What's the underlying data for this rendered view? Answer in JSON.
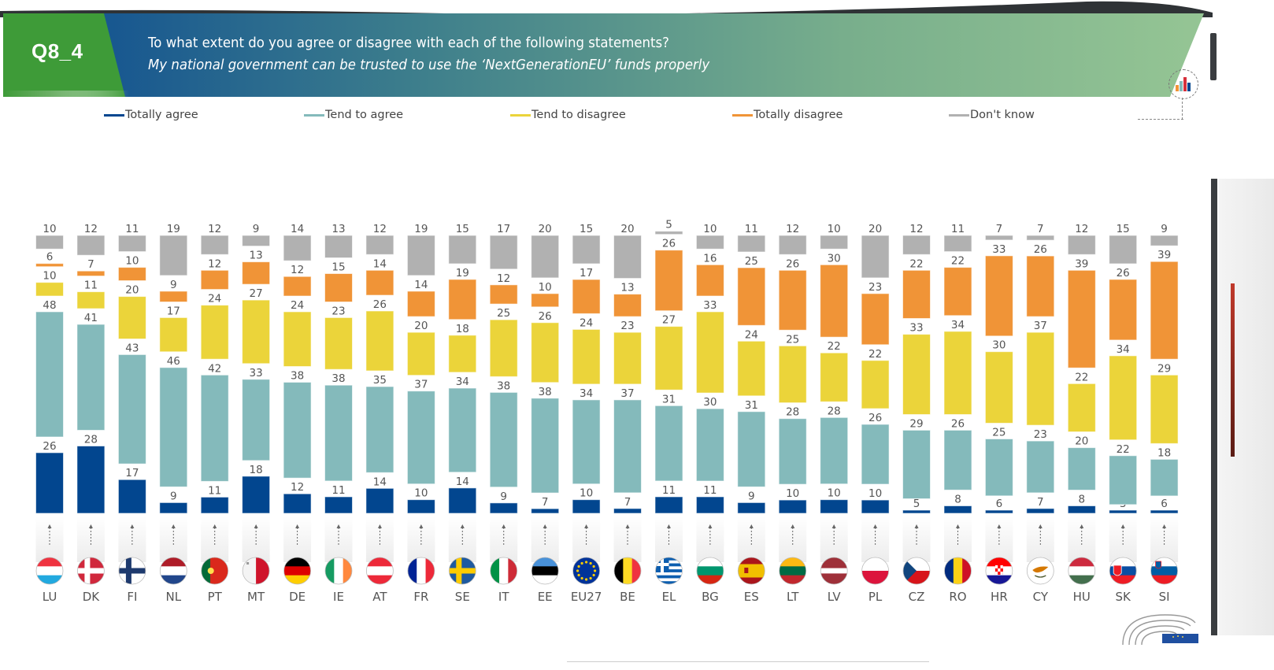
{
  "header": {
    "question_code": "Q8_4",
    "question_text": "To what extent do you agree or disagree with each of the following statements?",
    "statement": "My national government can be trusted to use the ‘NextGenerationEU’ funds properly",
    "chart_icon": "bar-chart-icon"
  },
  "colors": {
    "totally_agree": "#02468F",
    "tend_to_agree": "#84BABB",
    "tend_to_disagree": "#EBD43A",
    "totally_disagree": "#F09437",
    "dont_know": "#B1B1B1",
    "banner_green": "#3E9B38",
    "banner_blue": "#0B4A91",
    "banner_light": "#95C594"
  },
  "legend": [
    {
      "label": "Totally agree",
      "color": "#02468F"
    },
    {
      "label": "Tend to agree",
      "color": "#84BABB"
    },
    {
      "label": "Tend to disagree",
      "color": "#EBD43A"
    },
    {
      "label": "Totally disagree",
      "color": "#F09437"
    },
    {
      "label": "Don't know",
      "color": "#B1B1B1"
    }
  ],
  "chart_data": {
    "type": "bar",
    "stacked": true,
    "title": "My national government can be trusted to use the ‘NextGenerationEU’ funds properly",
    "xlabel": "",
    "ylabel": "",
    "ylim": [
      0,
      100
    ],
    "legend_position": "top",
    "grid": false,
    "categories": [
      "LU",
      "DK",
      "FI",
      "NL",
      "PT",
      "MT",
      "DE",
      "IE",
      "AT",
      "FR",
      "SE",
      "IT",
      "EE",
      "EU27",
      "BE",
      "EL",
      "BG",
      "ES",
      "LT",
      "LV",
      "PL",
      "CZ",
      "RO",
      "HR",
      "CY",
      "HU",
      "SK",
      "SI"
    ],
    "flags": [
      "lu-flag",
      "dk-flag",
      "fi-flag",
      "nl-flag",
      "pt-flag",
      "mt-flag",
      "de-flag",
      "ie-flag",
      "at-flag",
      "fr-flag",
      "se-flag",
      "it-flag",
      "ee-flag",
      "eu-flag",
      "be-flag",
      "gr-flag",
      "bg-flag",
      "es-flag",
      "lt-flag",
      "lv-flag",
      "pl-flag",
      "cz-flag",
      "ro-flag",
      "hr-flag",
      "cy-flag",
      "hu-flag",
      "sk-flag",
      "si-flag"
    ],
    "series": [
      {
        "name": "Totally agree",
        "color": "#02468F",
        "values": [
          26,
          28,
          17,
          9,
          11,
          18,
          12,
          11,
          14,
          10,
          14,
          9,
          7,
          10,
          7,
          11,
          11,
          9,
          10,
          10,
          10,
          5,
          8,
          6,
          7,
          8,
          3,
          6
        ]
      },
      {
        "name": "Tend to agree",
        "color": "#84BABB",
        "values": [
          48,
          41,
          43,
          46,
          42,
          33,
          38,
          38,
          35,
          37,
          34,
          38,
          38,
          34,
          37,
          31,
          30,
          31,
          28,
          28,
          26,
          29,
          26,
          25,
          23,
          20,
          22,
          18
        ]
      },
      {
        "name": "Tend to disagree",
        "color": "#EBD43A",
        "values": [
          10,
          11,
          20,
          17,
          24,
          27,
          24,
          23,
          26,
          20,
          18,
          25,
          26,
          24,
          23,
          27,
          33,
          24,
          25,
          22,
          22,
          33,
          34,
          30,
          37,
          22,
          34,
          29
        ]
      },
      {
        "name": "Totally disagree",
        "color": "#F09437",
        "values": [
          6,
          7,
          10,
          9,
          12,
          13,
          12,
          15,
          14,
          14,
          19,
          12,
          10,
          17,
          13,
          26,
          16,
          25,
          26,
          30,
          23,
          22,
          22,
          33,
          26,
          39,
          26,
          39
        ]
      },
      {
        "name": "Don't know",
        "color": "#B1B1B1",
        "values": [
          10,
          12,
          11,
          19,
          12,
          9,
          14,
          13,
          12,
          19,
          15,
          17,
          20,
          15,
          20,
          5,
          10,
          11,
          12,
          10,
          20,
          12,
          11,
          7,
          7,
          12,
          15,
          9
        ]
      }
    ]
  }
}
